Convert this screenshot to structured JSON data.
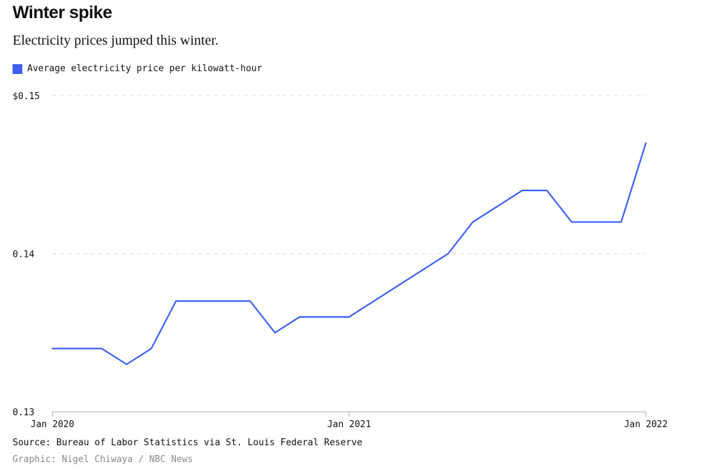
{
  "title": "Winter spike",
  "subtitle": "Electricity prices jumped this winter.",
  "source": "Source: Bureau of Labor Statistics via St. Louis Federal Reserve",
  "credit": "Graphic: Nigel Chiwaya / NBC News",
  "colors": {
    "line": "#3d5ff5",
    "grid": "#dddddd",
    "axis": "#aaaaaa",
    "credit": "#8a8a8a"
  },
  "chart_data": {
    "type": "line",
    "title": "Winter spike",
    "subtitle": "Electricity prices jumped this winter.",
    "xlabel": "",
    "ylabel": "",
    "legend": "top-left",
    "grid": true,
    "y_tick_values": [
      0.13,
      0.14,
      0.15
    ],
    "y_tick_labels": [
      "0.13",
      "0.14",
      "$0.15"
    ],
    "ylim": [
      0.13,
      0.15
    ],
    "x_tick_labels": [
      "Jan 2020",
      "Jan 2021",
      "Jan 2022"
    ],
    "xlim": [
      "2020-01",
      "2022-01"
    ],
    "series": [
      {
        "name": "Average electricity price per kilowatt-hour",
        "x": [
          "2020-01",
          "2020-02",
          "2020-03",
          "2020-04",
          "2020-05",
          "2020-06",
          "2020-07",
          "2020-08",
          "2020-09",
          "2020-10",
          "2020-11",
          "2020-12",
          "2021-01",
          "2021-02",
          "2021-03",
          "2021-04",
          "2021-05",
          "2021-06",
          "2021-07",
          "2021-08",
          "2021-09",
          "2021-10",
          "2021-11",
          "2021-12",
          "2022-01"
        ],
        "values": [
          0.134,
          0.134,
          0.134,
          0.133,
          0.134,
          0.137,
          0.137,
          0.137,
          0.137,
          0.135,
          0.136,
          0.136,
          0.136,
          0.137,
          0.138,
          0.139,
          0.14,
          0.142,
          0.143,
          0.144,
          0.144,
          0.142,
          0.142,
          0.142,
          0.147
        ]
      }
    ]
  }
}
